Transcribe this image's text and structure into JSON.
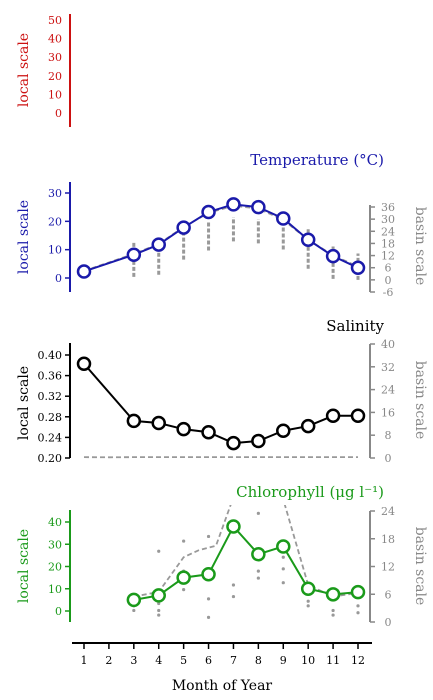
{
  "chart_data": [
    {
      "type": "line",
      "title": "",
      "ylabel": "local scale",
      "ylim": [
        0,
        50
      ],
      "yticks": [
        0,
        10,
        20,
        30,
        40,
        50
      ],
      "color": "#cc1111",
      "series": []
    },
    {
      "type": "line",
      "title": "Temperature (°C)",
      "ylabel": "local scale",
      "y2label": "basin scale",
      "ylim": [
        0,
        30
      ],
      "yticks": [
        0,
        10,
        20,
        30
      ],
      "y2ticks": [
        -6,
        0,
        6,
        12,
        18,
        24,
        30,
        36
      ],
      "color": "#1a1aaa",
      "x": [
        1,
        3,
        4,
        5,
        6,
        7,
        8,
        9,
        10,
        11,
        12
      ],
      "series": [
        {
          "values": [
            2.3,
            8.2,
            11.8,
            17.8,
            23.3,
            26.0,
            25.0,
            21.0,
            13.5,
            7.7,
            3.6
          ]
        }
      ],
      "basin_mean": [
        2.5,
        8.5,
        12,
        18,
        23,
        25.5,
        24.5,
        20.5,
        13.5,
        8,
        4
      ],
      "basin_range": [
        [
          null,
          null
        ],
        [
          1.5,
          19
        ],
        [
          2.5,
          19
        ],
        [
          10,
          28
        ],
        [
          14.5,
          29
        ],
        [
          19,
          31
        ],
        [
          18,
          30
        ],
        [
          15,
          27.5
        ],
        [
          5.5,
          25
        ],
        [
          0.5,
          16.5
        ],
        [
          0,
          13
        ]
      ]
    },
    {
      "type": "line",
      "title": "Salinity",
      "ylabel": "local scale",
      "y2label": "basin scale",
      "ylim": [
        0.2,
        0.4
      ],
      "yticks": [
        "0.20",
        "0.24",
        "0.28",
        "0.32",
        "0.36",
        "0.40"
      ],
      "y2ticks": [
        0,
        8,
        16,
        24,
        32,
        40
      ],
      "color": "#000000",
      "x": [
        1,
        3,
        4,
        5,
        6,
        7,
        8,
        9,
        10,
        11,
        12
      ],
      "series": [
        {
          "values": [
            0.383,
            0.272,
            0.268,
            0.256,
            0.25,
            0.229,
            0.233,
            0.253,
            0.262,
            0.282,
            0.282
          ]
        }
      ],
      "basin_x": [
        1,
        2,
        3,
        4,
        5,
        6,
        7,
        8,
        9,
        10,
        11,
        12
      ],
      "basin_mean": [
        0.3,
        0.25,
        0.3,
        0.3,
        0.3,
        0.3,
        0.3,
        0.3,
        0.3,
        0.3,
        0.3,
        0.3
      ]
    },
    {
      "type": "line",
      "title": "Chlorophyll (μg l⁻¹)",
      "ylabel": "local scale",
      "y2label": "basin scale",
      "ylim": [
        0,
        40
      ],
      "yticks": [
        0,
        10,
        20,
        30,
        40
      ],
      "y2ticks": [
        0,
        6,
        12,
        18,
        24
      ],
      "xlabel": "Month of Year",
      "xticks": [
        1,
        2,
        3,
        4,
        5,
        6,
        7,
        8,
        9,
        10,
        11,
        12
      ],
      "color": "#1a9a1a",
      "x": [
        3,
        4,
        5,
        6,
        7,
        8,
        9,
        10,
        11,
        12
      ],
      "series": [
        {
          "values": [
            5,
            7,
            15,
            16.5,
            38,
            25.5,
            29,
            10,
            7.5,
            8.5
          ]
        }
      ],
      "basin_x": [
        3,
        4,
        5,
        5.6,
        6.3,
        7,
        8,
        9,
        10,
        10.6,
        11,
        12
      ],
      "basin_mean": [
        5.5,
        6.5,
        14,
        15.5,
        16.5,
        27,
        27,
        26.5,
        8,
        6.5,
        5.5,
        6.3
      ],
      "basin_points": [
        [
          3,
          5.8
        ],
        [
          3,
          3.5
        ],
        [
          3,
          2.5
        ],
        [
          4,
          15.3
        ],
        [
          4,
          4.0
        ],
        [
          4,
          2.5
        ],
        [
          4,
          1.5
        ],
        [
          5,
          17.5
        ],
        [
          5,
          11
        ],
        [
          5,
          7
        ],
        [
          6,
          18.5
        ],
        [
          6,
          5
        ],
        [
          6,
          1
        ],
        [
          7,
          8
        ],
        [
          7,
          5.5
        ],
        [
          8,
          23.5
        ],
        [
          8,
          11
        ],
        [
          8,
          9.5
        ],
        [
          9,
          14
        ],
        [
          9,
          11.5
        ],
        [
          9,
          8.5
        ],
        [
          10,
          6.5
        ],
        [
          10,
          4.5
        ],
        [
          10,
          3.5
        ],
        [
          11,
          5.5
        ],
        [
          11,
          2.5
        ],
        [
          11,
          1.5
        ],
        [
          12,
          5.5
        ],
        [
          12,
          3.5
        ],
        [
          12,
          2
        ]
      ]
    }
  ]
}
